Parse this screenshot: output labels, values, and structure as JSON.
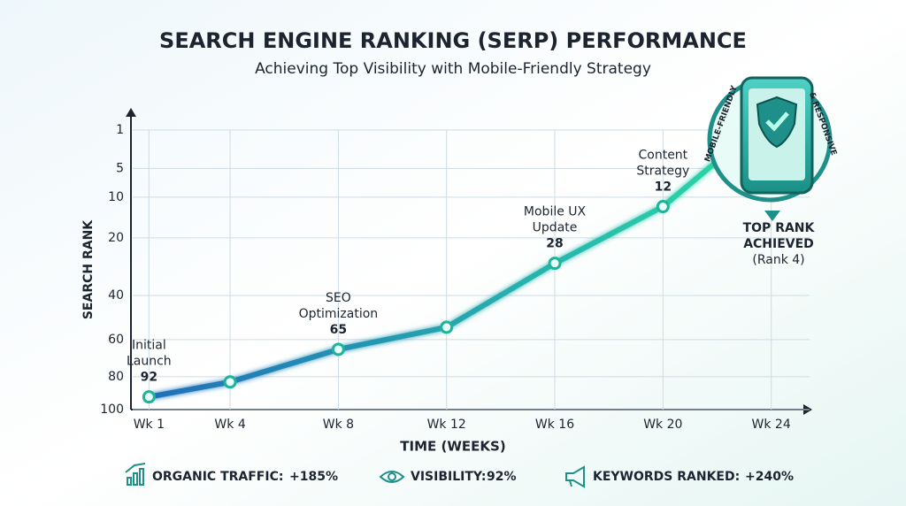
{
  "chart_data": {
    "type": "line",
    "title": "SEARCH ENGINE RANKING (SERP) PERFORMANCE",
    "subtitle": "Achieving Top Visibility with Mobile-Friendly Strategy",
    "x_label": "TIME (WEEKS)",
    "y_label": "SEARCH RANK",
    "x": [
      1,
      4,
      8,
      12,
      16,
      20,
      22
    ],
    "series": [
      {
        "name": "Search Rank",
        "color": "#1fb39a",
        "values": [
          92,
          83,
          65,
          54,
          28,
          12,
          4
        ]
      }
    ],
    "point_labels": [
      [
        "Initial",
        "Launch"
      ],
      null,
      [
        "SEO",
        "Optimization"
      ],
      null,
      [
        "Mobile UX",
        "Update"
      ],
      [
        "Content",
        "Strategy"
      ],
      null
    ],
    "xlim": [
      0.4,
      24.6
    ],
    "xticks": [
      {
        "value": 1,
        "label": "Wk 1"
      },
      {
        "value": 4,
        "label": "Wk 4"
      },
      {
        "value": 8,
        "label": "Wk 8"
      },
      {
        "value": 12,
        "label": "Wk 12"
      },
      {
        "value": 16,
        "label": "Wk 16"
      },
      {
        "value": 20,
        "label": "Wk 20"
      },
      {
        "value": 24,
        "label": "Wk 24"
      }
    ],
    "ylim": [
      1,
      100
    ],
    "yticks": [
      1,
      5,
      10,
      20,
      40,
      60,
      80,
      100
    ],
    "y_scale": "sqrt",
    "y_inverted": true,
    "grid": true,
    "callout": {
      "title": [
        "TOP RANK",
        "ACHIEVED"
      ],
      "detail": "(Rank 4)"
    },
    "badge": [
      "MOBILE-FRIENDLY",
      "& RESPONSIVE"
    ],
    "stats": [
      {
        "label": "ORGANIC TRAFFIC:",
        "value": "+185%"
      },
      {
        "label": "VISIBILITY:",
        "value": "92%"
      },
      {
        "label": "KEYWORDS RANKED:",
        "value": "+240%"
      }
    ]
  }
}
